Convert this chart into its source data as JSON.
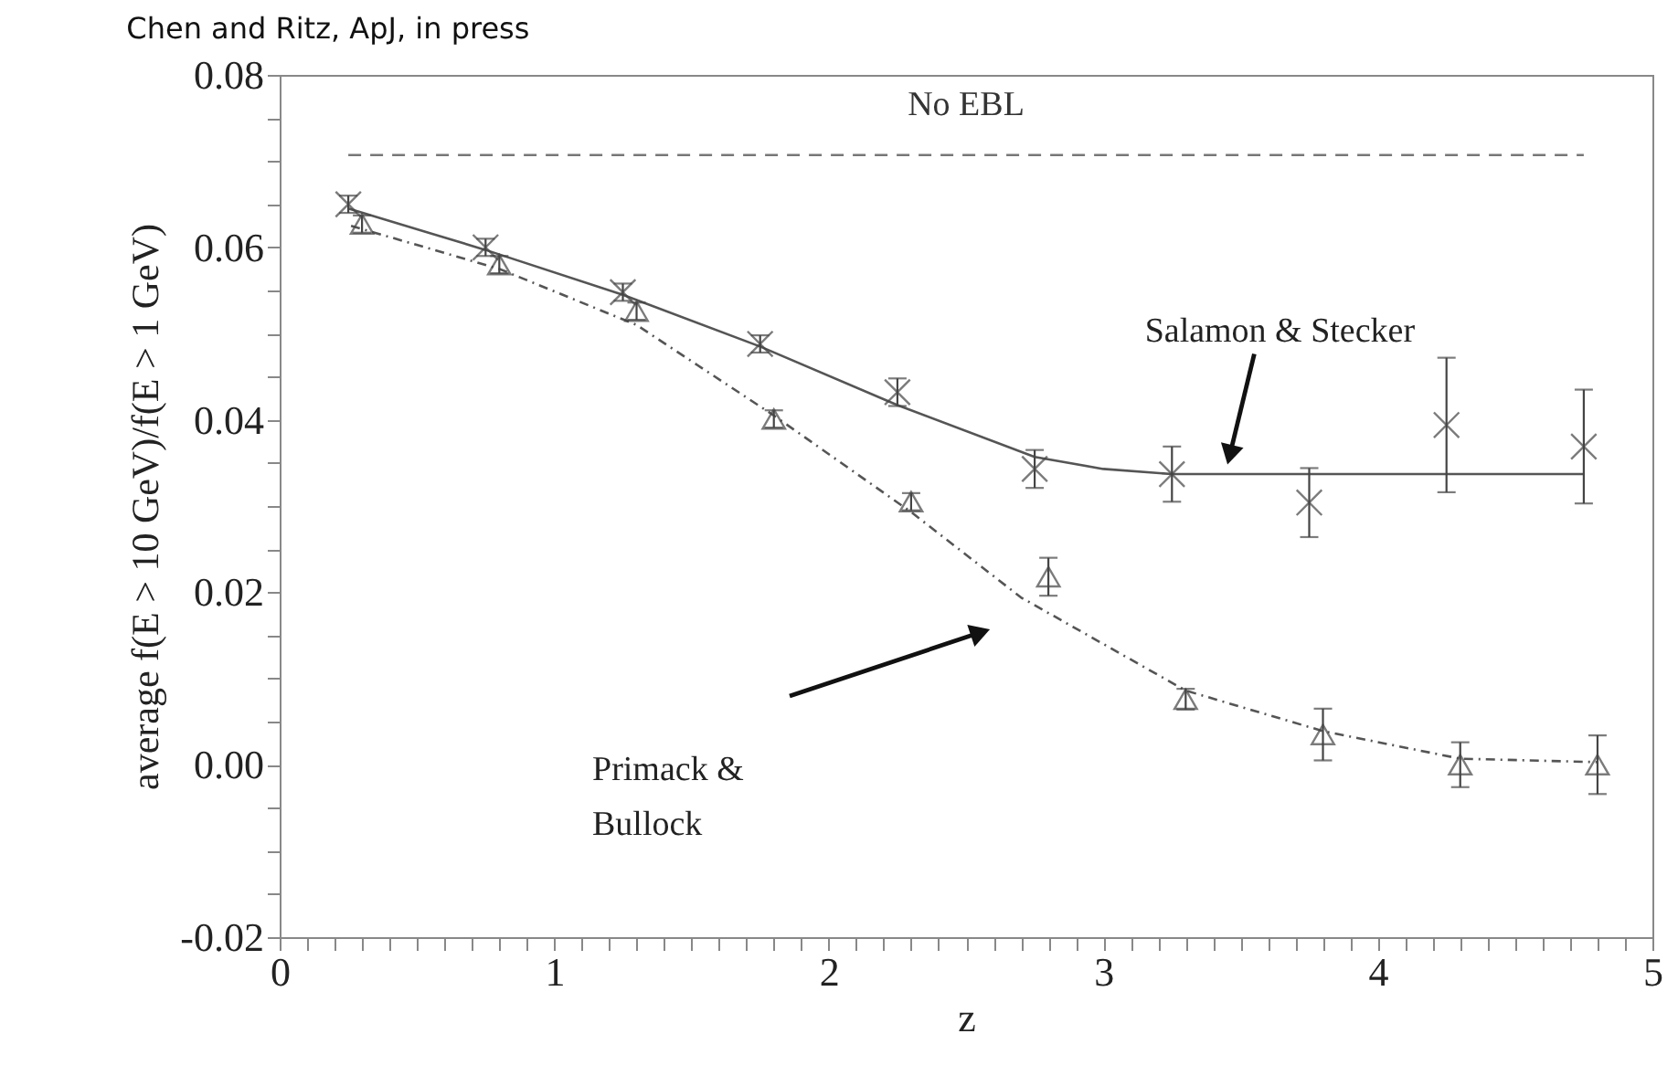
{
  "chart_data": {
    "type": "scatter",
    "title": "Chen and Ritz, ApJ, in press",
    "xlabel": "z",
    "ylabel": "average f(E > 10 GeV)/f(E > 1 GeV)",
    "xlim": [
      0,
      5
    ],
    "ylim": [
      -0.02,
      0.08
    ],
    "xticks": [
      0,
      {
        "value": 0.1,
        "label": null
      },
      {
        "value": 0.2,
        "label": null
      },
      {
        "value": 0.3,
        "label": null
      },
      {
        "value": 0.4,
        "label": null
      },
      {
        "value": 0.5,
        "label": null
      },
      {
        "value": 0.6,
        "label": null
      },
      {
        "value": 0.7,
        "label": null
      },
      {
        "value": 0.8,
        "label": null
      },
      {
        "value": 0.9,
        "label": null
      },
      1,
      {
        "value": 1.1,
        "label": null
      },
      {
        "value": 1.2,
        "label": null
      },
      {
        "value": 1.3,
        "label": null
      },
      {
        "value": 1.4,
        "label": null
      },
      {
        "value": 1.5,
        "label": null
      },
      {
        "value": 1.6,
        "label": null
      },
      {
        "value": 1.7,
        "label": null
      },
      {
        "value": 1.8,
        "label": null
      },
      {
        "value": 1.9,
        "label": null
      },
      2,
      {
        "value": 2.1,
        "label": null
      },
      {
        "value": 2.2,
        "label": null
      },
      {
        "value": 2.3,
        "label": null
      },
      {
        "value": 2.4,
        "label": null
      },
      {
        "value": 2.5,
        "label": null
      },
      {
        "value": 2.6,
        "label": null
      },
      {
        "value": 2.7,
        "label": null
      },
      {
        "value": 2.8,
        "label": null
      },
      {
        "value": 2.9,
        "label": null
      },
      3,
      {
        "value": 3.1,
        "label": null
      },
      {
        "value": 3.2,
        "label": null
      },
      {
        "value": 3.3,
        "label": null
      },
      {
        "value": 3.4,
        "label": null
      },
      {
        "value": 3.5,
        "label": null
      },
      {
        "value": 3.6,
        "label": null
      },
      {
        "value": 3.7,
        "label": null
      },
      {
        "value": 3.8,
        "label": null
      },
      {
        "value": 3.9,
        "label": null
      },
      4,
      {
        "value": 4.1,
        "label": null
      },
      {
        "value": 4.2,
        "label": null
      },
      {
        "value": 4.3,
        "label": null
      },
      {
        "value": 4.4,
        "label": null
      },
      {
        "value": 4.5,
        "label": null
      },
      {
        "value": 4.6,
        "label": null
      },
      {
        "value": 4.7,
        "label": null
      },
      {
        "value": 4.8,
        "label": null
      },
      {
        "value": 4.9,
        "label": null
      },
      5
    ],
    "yticks": [
      {
        "value": -0.02,
        "label": "-0.02"
      },
      {
        "value": -0.015,
        "label": null
      },
      {
        "value": -0.01,
        "label": null
      },
      {
        "value": -0.005,
        "label": null
      },
      {
        "value": 0,
        "label": "0.00"
      },
      {
        "value": 0.005,
        "label": null
      },
      {
        "value": 0.01,
        "label": null
      },
      {
        "value": 0.015,
        "label": null
      },
      0.02,
      {
        "value": 0.025,
        "label": null
      },
      {
        "value": 0.03,
        "label": null
      },
      {
        "value": 0.035,
        "label": null
      },
      0.04,
      {
        "value": 0.045,
        "label": null
      },
      {
        "value": 0.05,
        "label": null
      },
      {
        "value": 0.055,
        "label": null
      },
      0.06,
      {
        "value": 0.065,
        "label": null
      },
      {
        "value": 0.07,
        "label": null
      },
      {
        "value": 0.075,
        "label": null
      },
      0.08
    ],
    "series": [
      {
        "type": "line",
        "color": "#555555",
        "line_style": "solid",
        "x": [
          0.25,
          0.75,
          1.25,
          1.75,
          2.25,
          2.75,
          3.0,
          3.25,
          4.75
        ],
        "values": [
          0.0645,
          0.0597,
          0.0545,
          0.0485,
          0.0417,
          0.0357,
          0.0343,
          0.0337,
          0.0337
        ]
      },
      {
        "type": "line",
        "color": "#555555",
        "line_style": "dotted",
        "x": [
          0.26,
          0.8,
          1.3,
          1.8,
          2.3,
          2.7,
          3.3,
          3.8,
          4.3,
          4.8
        ],
        "values": [
          0.0625,
          0.0575,
          0.051,
          0.0405,
          0.0293,
          0.0194,
          0.0086,
          0.0039,
          0.0007,
          0.0003
        ]
      },
      {
        "type": "line",
        "name": "No EBL",
        "color": "#777777",
        "line_style": "dashed",
        "x": [
          0.25,
          4.75
        ],
        "values": [
          0.0707,
          0.0707
        ]
      },
      {
        "marker": "cross",
        "color": "#444444",
        "x": [
          0.25,
          0.75,
          1.25,
          1.75,
          2.25,
          2.75,
          3.25,
          3.75,
          4.25,
          4.75
        ],
        "values": [
          0.065,
          0.06,
          0.0548,
          0.0488,
          0.0432,
          0.0343,
          0.0337,
          0.0304,
          0.0394,
          0.0369
        ],
        "errors": [
          0.001,
          0.001,
          0.001,
          0.001,
          0.0016,
          0.0022,
          0.0032,
          0.004,
          0.0078,
          0.0066
        ]
      },
      {
        "marker": "triangle",
        "color": "#444444",
        "x": [
          0.3,
          0.8,
          1.3,
          1.8,
          2.3,
          2.8,
          3.3,
          3.8,
          4.3,
          4.8
        ],
        "values": [
          0.0627,
          0.058,
          0.0526,
          0.0401,
          0.0305,
          0.0218,
          0.0076,
          0.0035,
          0.0,
          0.0
        ],
        "errors": [
          0.001,
          0.001,
          0.001,
          0.001,
          0.001,
          0.0022,
          0.0012,
          0.003,
          0.0026,
          0.0034
        ]
      }
    ],
    "annotations": [
      {
        "text": "Salamon & Stecker",
        "x": 3.45,
        "y": 0.0345
      },
      "Primack &\nBullock"
    ]
  }
}
